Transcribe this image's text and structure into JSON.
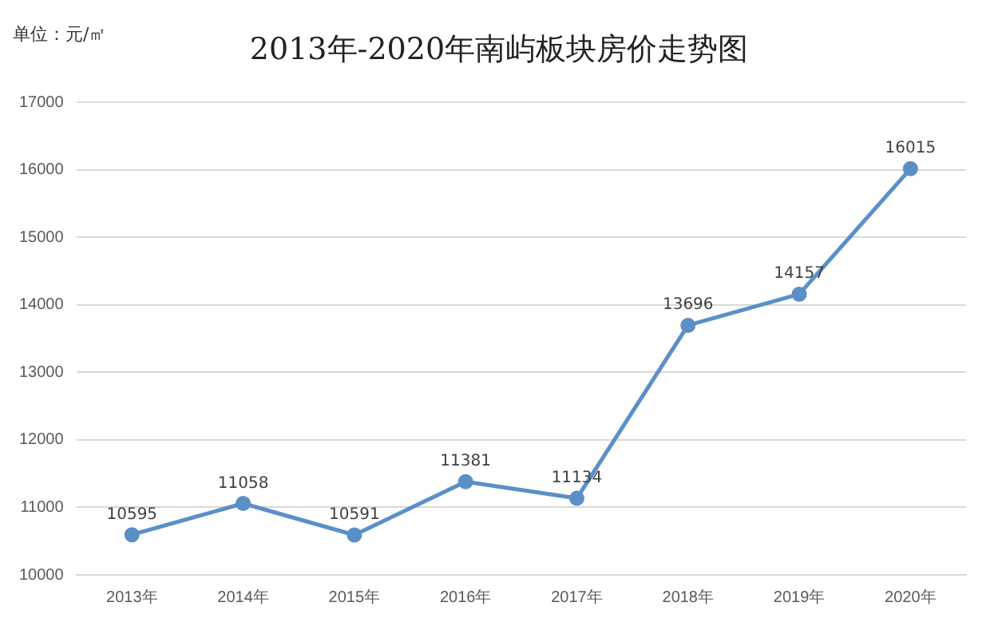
{
  "chart_data": {
    "type": "line",
    "title": "2013年-2020年南屿板块房价走势图",
    "ylabel": "单位：元/㎡",
    "categories": [
      "2013年",
      "2014年",
      "2015年",
      "2016年",
      "2017年",
      "2018年",
      "2019年",
      "2020年"
    ],
    "series": [
      {
        "color": "#5b8fc7",
        "values": [
          10595,
          11058,
          10591,
          11381,
          11134,
          13696,
          14157,
          16015
        ]
      }
    ],
    "ylim": [
      10000,
      17000
    ],
    "yticks": [
      10000,
      11000,
      12000,
      13000,
      14000,
      15000,
      16000,
      17000
    ],
    "grid": "y",
    "legend": false,
    "marker": "circle",
    "line_style": "solid",
    "data_labels": true
  }
}
